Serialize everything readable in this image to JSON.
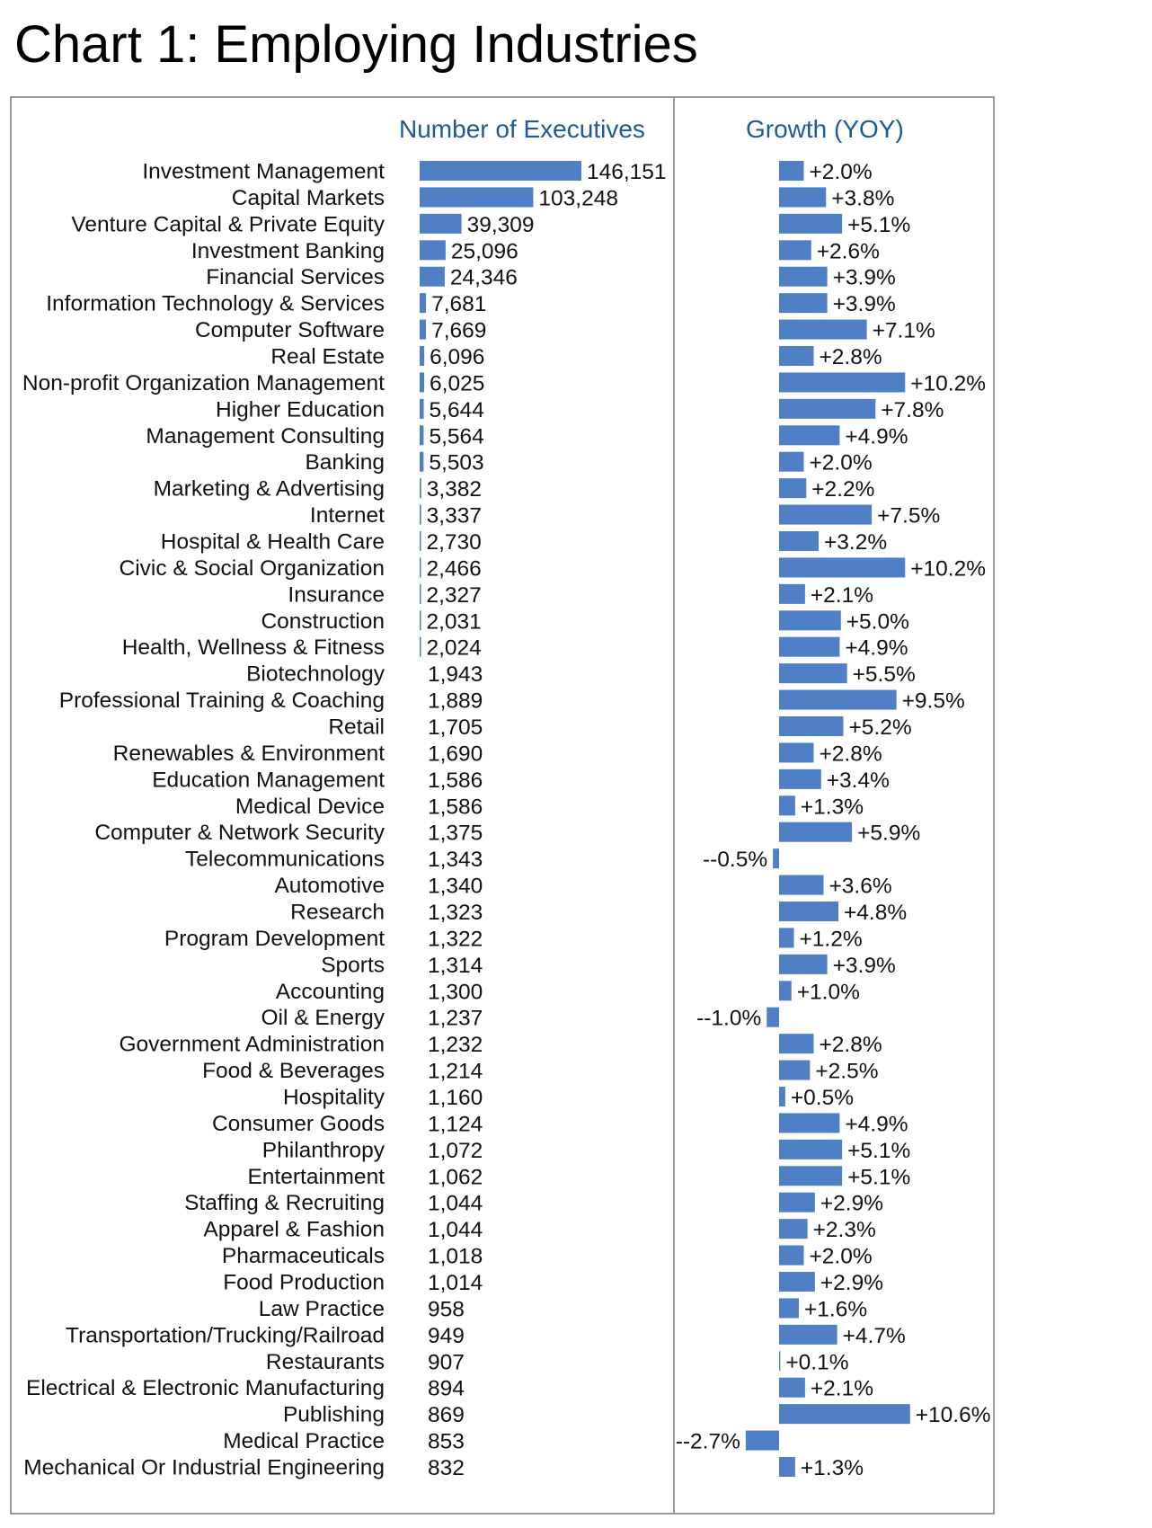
{
  "page": {
    "title": "Chart 1: Employing Industries"
  },
  "colors": {
    "bar": "#4f7fc4",
    "header_text": "#1f5a96",
    "frame": "#9a9a9a"
  },
  "chart_data": {
    "type": "bar",
    "orientation": "horizontal",
    "title": "Chart 1: Employing Industries",
    "panels": [
      {
        "name": "Number of Executives",
        "series_key": "executives"
      },
      {
        "name": "Growth (YOY)",
        "series_key": "growth"
      }
    ],
    "legend": "none",
    "grid": false,
    "categories": [
      "Investment Management",
      "Capital Markets",
      "Venture Capital & Private Equity",
      "Investment Banking",
      "Financial Services",
      "Information Technology & Services",
      "Computer Software",
      "Real Estate",
      "Non-profit Organization Management",
      "Higher Education",
      "Management Consulting",
      "Banking",
      "Marketing & Advertising",
      "Internet",
      "Hospital & Health Care",
      "Civic & Social Organization",
      "Insurance",
      "Construction",
      "Health, Wellness & Fitness",
      "Biotechnology",
      "Professional Training & Coaching",
      "Retail",
      "Renewables & Environment",
      "Education Management",
      "Medical Device",
      "Computer & Network Security",
      "Telecommunications",
      "Automotive",
      "Research",
      "Program Development",
      "Sports",
      "Accounting",
      "Oil & Energy",
      "Government Administration",
      "Food & Beverages",
      "Hospitality",
      "Consumer Goods",
      "Philanthropy",
      "Entertainment",
      "Staffing & Recruiting",
      "Apparel & Fashion",
      "Pharmaceuticals",
      "Food Production",
      "Law Practice",
      "Transportation/Trucking/Railroad",
      "Restaurants",
      "Electrical & Electronic Manufacturing",
      "Publishing",
      "Medical Practice",
      "Mechanical Or Industrial Engineering"
    ],
    "executives": [
      146151,
      103248,
      39309,
      25096,
      24346,
      7681,
      7669,
      6096,
      6025,
      5644,
      5564,
      5503,
      3382,
      3337,
      2730,
      2466,
      2327,
      2031,
      2024,
      1943,
      1889,
      1705,
      1690,
      1586,
      1586,
      1375,
      1343,
      1340,
      1323,
      1322,
      1314,
      1300,
      1237,
      1232,
      1214,
      1160,
      1124,
      1072,
      1062,
      1044,
      1044,
      1018,
      1014,
      958,
      949,
      907,
      894,
      869,
      853,
      832
    ],
    "executives_labels": [
      "146,151",
      "103,248",
      "39,309",
      "25,096",
      "24,346",
      "7,681",
      "7,669",
      "6,096",
      "6,025",
      "5,644",
      "5,564",
      "5,503",
      "3,382",
      "3,337",
      "2,730",
      "2,466",
      "2,327",
      "2,031",
      "2,024",
      "1,943",
      "1,889",
      "1,705",
      "1,690",
      "1,586",
      "1,586",
      "1,375",
      "1,343",
      "1,340",
      "1,323",
      "1,322",
      "1,314",
      "1,300",
      "1,237",
      "1,232",
      "1,214",
      "1,160",
      "1,124",
      "1,072",
      "1,062",
      "1,044",
      "1,044",
      "1,018",
      "1,014",
      "958",
      "949",
      "907",
      "894",
      "869",
      "853",
      "832"
    ],
    "executives_xlim": [
      2000,
      146151
    ],
    "growth": [
      2.0,
      3.8,
      5.1,
      2.6,
      3.9,
      3.9,
      7.1,
      2.8,
      10.2,
      7.8,
      4.9,
      2.0,
      2.2,
      7.5,
      3.2,
      10.2,
      2.1,
      5.0,
      4.9,
      5.5,
      9.5,
      5.2,
      2.8,
      3.4,
      1.3,
      5.9,
      -0.5,
      3.6,
      4.8,
      1.2,
      3.9,
      1.0,
      -1.0,
      2.8,
      2.5,
      0.5,
      4.9,
      5.1,
      5.1,
      2.9,
      2.3,
      2.0,
      2.9,
      1.6,
      4.7,
      0.1,
      2.1,
      10.6,
      -2.7,
      1.3
    ],
    "growth_labels": [
      "+2.0%",
      "+3.8%",
      "+5.1%",
      "+2.6%",
      "+3.9%",
      "+3.9%",
      "+7.1%",
      "+2.8%",
      "+10.2%",
      "+7.8%",
      "+4.9%",
      "+2.0%",
      "+2.2%",
      "+7.5%",
      "+3.2%",
      "+10.2%",
      "+2.1%",
      "+5.0%",
      "+4.9%",
      "+5.5%",
      "+9.5%",
      "+5.2%",
      "+2.8%",
      "+3.4%",
      "+1.3%",
      "+5.9%",
      "--0.5%",
      "+3.6%",
      "+4.8%",
      "+1.2%",
      "+3.9%",
      "+1.0%",
      "--1.0%",
      "+2.8%",
      "+2.5%",
      "+0.5%",
      "+4.9%",
      "+5.1%",
      "+5.1%",
      "+2.9%",
      "+2.3%",
      "+2.0%",
      "+2.9%",
      "+1.6%",
      "+4.7%",
      "+0.1%",
      "+2.1%",
      "+10.6%",
      "--2.7%",
      "+1.3%"
    ],
    "growth_xlim": [
      -2.7,
      10.6
    ]
  }
}
